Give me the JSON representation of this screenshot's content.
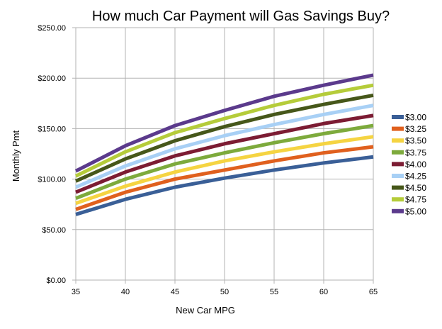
{
  "chart_data": {
    "type": "line",
    "title": "How much Car Payment will Gas Savings Buy?",
    "xlabel": "New Car MPG",
    "ylabel": "Monthly Pmt",
    "x": [
      35,
      40,
      45,
      50,
      55,
      60,
      65
    ],
    "xlim": [
      35,
      65
    ],
    "ylim": [
      0,
      250
    ],
    "yticks": [
      "$0.00",
      "$50.00",
      "$100.00",
      "$150.00",
      "$200.00",
      "$250.00"
    ],
    "xticks": [
      "35",
      "40",
      "45",
      "50",
      "55",
      "60",
      "65"
    ],
    "grid": true,
    "legend": "right",
    "series": [
      {
        "name": "$3.00",
        "color": "#3A5F97",
        "values": [
          65,
          80,
          92,
          101,
          109,
          116,
          122
        ]
      },
      {
        "name": "$3.25",
        "color": "#E0601E",
        "values": [
          70,
          87,
          100,
          109,
          118,
          126,
          132
        ]
      },
      {
        "name": "$3.50",
        "color": "#F5D442",
        "values": [
          76,
          93,
          107,
          118,
          127,
          135,
          142
        ]
      },
      {
        "name": "$3.75",
        "color": "#7DAA3C",
        "values": [
          81,
          100,
          115,
          126,
          136,
          145,
          153
        ]
      },
      {
        "name": "$4.00",
        "color": "#7C1C33",
        "values": [
          87,
          107,
          123,
          135,
          145,
          155,
          163
        ]
      },
      {
        "name": "$4.25",
        "color": "#A8D0F5",
        "values": [
          92,
          113,
          130,
          143,
          154,
          164,
          173
        ]
      },
      {
        "name": "$4.50",
        "color": "#46571A",
        "values": [
          98,
          120,
          138,
          152,
          164,
          174,
          183
        ]
      },
      {
        "name": "$4.75",
        "color": "#B5CC3A",
        "values": [
          103,
          127,
          146,
          160,
          173,
          184,
          193
        ]
      },
      {
        "name": "$5.00",
        "color": "#5B3A8C",
        "values": [
          108,
          133,
          153,
          168,
          182,
          193,
          203
        ]
      }
    ]
  }
}
